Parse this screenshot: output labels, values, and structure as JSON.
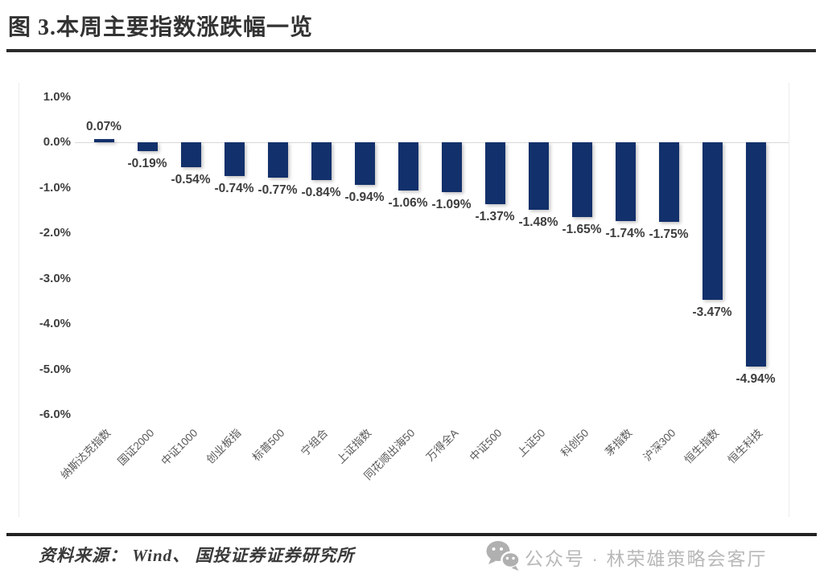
{
  "figure": {
    "title": "图 3.本周主要指数涨跌幅一览"
  },
  "chart_data": {
    "type": "bar",
    "title": "本周主要指数涨跌幅一览",
    "categories": [
      "纳斯达克指数",
      "国证2000",
      "中证1000",
      "创业板指",
      "标普500",
      "宁组合",
      "上证指数",
      "同花顺出海50",
      "万得全A",
      "中证500",
      "上证50",
      "科创50",
      "茅指数",
      "沪深300",
      "恒生指数",
      "恒生科技"
    ],
    "values": [
      0.07,
      -0.19,
      -0.54,
      -0.74,
      -0.77,
      -0.84,
      -0.94,
      -1.06,
      -1.09,
      -1.37,
      -1.48,
      -1.65,
      -1.74,
      -1.75,
      -3.47,
      -4.94
    ],
    "value_labels": [
      "0.07%",
      "-0.19%",
      "-0.54%",
      "-0.74%",
      "-0.77%",
      "-0.84%",
      "-0.94%",
      "-1.06%",
      "-1.09%",
      "-1.37%",
      "-1.48%",
      "-1.65%",
      "-1.74%",
      "-1.75%",
      "-3.47%",
      "-4.94%"
    ],
    "xlabel": "",
    "ylabel": "",
    "ylim": [
      -6.0,
      1.0
    ],
    "yticks": [
      1.0,
      0.0,
      -1.0,
      -2.0,
      -3.0,
      -4.0,
      -5.0,
      -6.0
    ],
    "ytick_labels": [
      "1.0%",
      "0.0%",
      "-1.0%",
      "-2.0%",
      "-3.0%",
      "-4.0%",
      "-5.0%",
      "-6.0%"
    ],
    "grid": "zero-baseline-only",
    "legend": "none",
    "bar_color": "#12306b",
    "label_color": "#3d3d3d",
    "axis_text_color": "#404040"
  },
  "footer": {
    "source_text": "资料来源： Wind、 国投证券证券研究所",
    "wechat_icon": "wechat-icon",
    "account_text": "公众号 · 林荣雄策略会客厅"
  }
}
